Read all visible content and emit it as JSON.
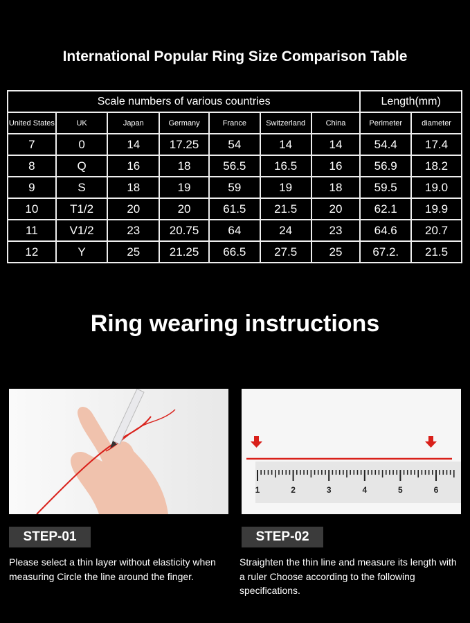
{
  "title": "International Popular Ring Size Comparison Table",
  "table": {
    "group_headers": [
      "Scale numbers of various countries",
      "Length(mm)"
    ],
    "columns": [
      "United States",
      "UK",
      "Japan",
      "Germany",
      "France",
      "Switzerland",
      "China",
      "Perimeter",
      "diameter"
    ],
    "rows": [
      [
        "7",
        "0",
        "14",
        "17.25",
        "54",
        "14",
        "14",
        "54.4",
        "17.4"
      ],
      [
        "8",
        "Q",
        "16",
        "18",
        "56.5",
        "16.5",
        "16",
        "56.9",
        "18.2"
      ],
      [
        "9",
        "S",
        "18",
        "19",
        "59",
        "19",
        "18",
        "59.5",
        "19.0"
      ],
      [
        "10",
        "T1/2",
        "20",
        "20",
        "61.5",
        "21.5",
        "20",
        "62.1",
        "19.9"
      ],
      [
        "11",
        "V1/2",
        "23",
        "20.75",
        "64",
        "24",
        "23",
        "64.6",
        "20.7"
      ],
      [
        "12",
        "Y",
        "25",
        "21.25",
        "66.5",
        "27.5",
        "25",
        "67.2.",
        "21.5"
      ]
    ]
  },
  "instructions_title": "Ring wearing instructions",
  "steps": [
    {
      "label": "STEP-01",
      "text": "Please select a thin layer without elasticity when measuring Circle the line around the finger."
    },
    {
      "label": "STEP-02",
      "text": "Straighten the thin line and measure its length with a ruler Choose according to the following specifications."
    }
  ],
  "ruler_labels": [
    "1",
    "2",
    "3",
    "4",
    "5",
    "6"
  ],
  "colors": {
    "accent": "#d9201a",
    "step_bg": "#3b3b3b"
  }
}
